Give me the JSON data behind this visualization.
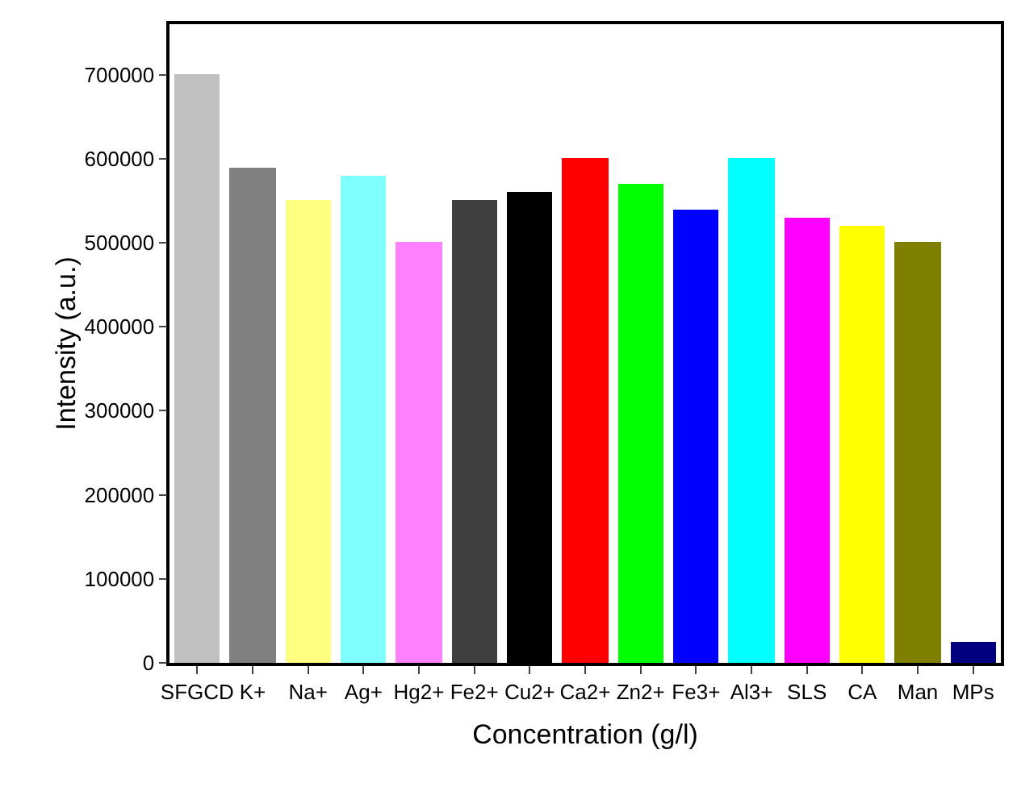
{
  "chart_data": {
    "type": "bar",
    "xlabel": "Concentration (g/l)",
    "ylabel": "Intensity (a.u.)",
    "categories": [
      "SFGCD",
      "K+",
      "Na+",
      "Ag+",
      "Hg2+",
      "Fe2+",
      "Cu2+",
      "Ca2+",
      "Zn2+",
      "Fe3+",
      "Al3+",
      "SLS",
      "CA",
      "Man",
      "MPs"
    ],
    "values": [
      700000,
      590000,
      550000,
      580000,
      500000,
      550000,
      560000,
      600000,
      570000,
      540000,
      600000,
      530000,
      520000,
      500000,
      25000
    ],
    "colors": [
      "#c0c0c0",
      "#808080",
      "#ffff80",
      "#80ffff",
      "#ff80ff",
      "#404040",
      "#000000",
      "#ff0000",
      "#00ff00",
      "#0000ff",
      "#00ffff",
      "#ff00ff",
      "#ffff00",
      "#808000",
      "#000080"
    ],
    "ylim": [
      0,
      760000
    ],
    "yticks": [
      0,
      100000,
      200000,
      300000,
      400000,
      500000,
      600000,
      700000
    ],
    "grid": false
  }
}
